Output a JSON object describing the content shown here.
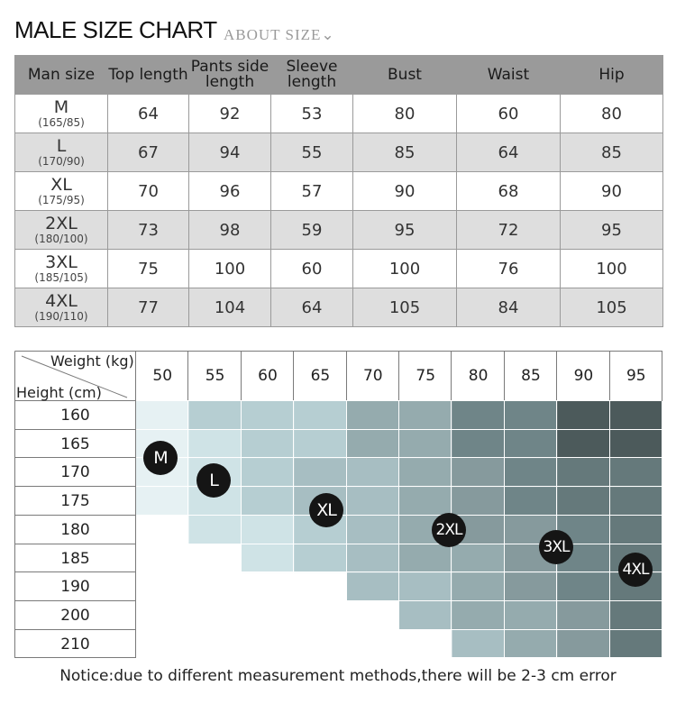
{
  "header": {
    "title": "MALE SIZE CHART",
    "subtitle": "ABOUT SIZE⌄"
  },
  "size_table": {
    "columns": [
      "Man size",
      "Top length",
      "Pants side length",
      "Sleeve length",
      "Bust",
      "Waist",
      "Hip"
    ],
    "rows": [
      {
        "size": "M",
        "hw": "(165/85)",
        "values": [
          "64",
          "92",
          "53",
          "80",
          "60",
          "80"
        ]
      },
      {
        "size": "L",
        "hw": "(170/90)",
        "values": [
          "67",
          "94",
          "55",
          "85",
          "64",
          "85"
        ]
      },
      {
        "size": "XL",
        "hw": "(175/95)",
        "values": [
          "70",
          "96",
          "57",
          "90",
          "68",
          "90"
        ]
      },
      {
        "size": "2XL",
        "hw": "(180/100)",
        "values": [
          "73",
          "98",
          "59",
          "95",
          "72",
          "95"
        ]
      },
      {
        "size": "3XL",
        "hw": "(185/105)",
        "values": [
          "75",
          "100",
          "60",
          "100",
          "76",
          "100"
        ]
      },
      {
        "size": "4XL",
        "hw": "(190/110)",
        "values": [
          "77",
          "104",
          "64",
          "105",
          "84",
          "105"
        ]
      }
    ]
  },
  "fit_grid": {
    "weight_label": "Weight (kg)",
    "height_label": "Height (cm)",
    "weights": [
      "50",
      "55",
      "60",
      "65",
      "70",
      "75",
      "80",
      "85",
      "90",
      "95"
    ],
    "heights": [
      "160",
      "165",
      "170",
      "175",
      "180",
      "185",
      "190",
      "200",
      "210"
    ],
    "levels": [
      [
        1,
        3,
        3,
        3,
        5,
        5,
        7,
        7,
        9,
        9
      ],
      [
        1,
        2,
        3,
        3,
        5,
        5,
        7,
        7,
        9,
        9
      ],
      [
        1,
        2,
        3,
        4,
        4,
        5,
        6,
        7,
        8,
        8
      ],
      [
        1,
        2,
        3,
        4,
        4,
        5,
        6,
        7,
        8,
        8
      ],
      [
        0,
        2,
        2,
        3,
        4,
        5,
        6,
        6,
        7,
        8
      ],
      [
        0,
        0,
        2,
        3,
        4,
        5,
        5,
        6,
        7,
        8
      ],
      [
        0,
        0,
        0,
        0,
        4,
        4,
        5,
        6,
        7,
        8
      ],
      [
        0,
        0,
        0,
        0,
        0,
        4,
        5,
        5,
        6,
        8
      ],
      [
        0,
        0,
        0,
        0,
        0,
        0,
        4,
        5,
        6,
        8
      ]
    ],
    "level_colors": [
      "#ffffff",
      "#e6f1f3",
      "#cfe3e6",
      "#b6ced2",
      "#a7bec2",
      "#95abae",
      "#869a9d",
      "#6f8588",
      "#65797b",
      "#4c5a5b"
    ],
    "badges": [
      "M",
      "L",
      "XL",
      "2XL",
      "3XL",
      "4XL"
    ]
  },
  "notice": "Notice:due to different measurement methods,there will be 2-3 cm error"
}
